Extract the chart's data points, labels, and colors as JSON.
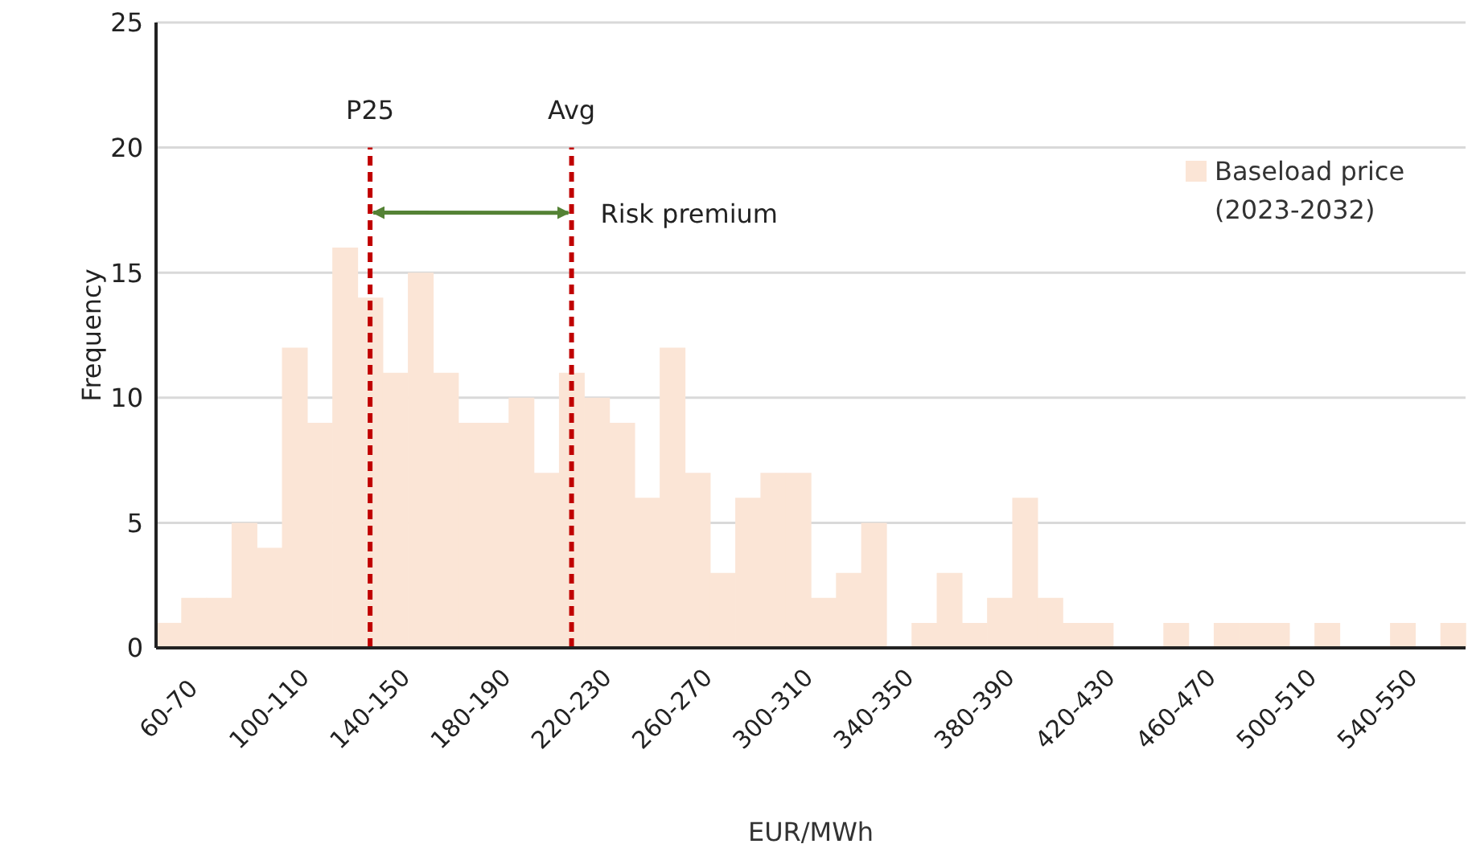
{
  "chart_data": {
    "type": "bar",
    "xlabel": "EUR/MWh",
    "ylabel": "Frequency",
    "categories": [
      "60-70",
      null,
      null,
      null,
      "100-110",
      null,
      null,
      null,
      "140-150",
      null,
      null,
      null,
      "180-190",
      null,
      null,
      null,
      "220-230",
      null,
      null,
      null,
      "260-270",
      null,
      null,
      null,
      "300-310",
      null,
      null,
      null,
      "340-350",
      null,
      null,
      null,
      "380-390",
      null,
      null,
      null,
      "420-430",
      null,
      null,
      null,
      "460-470",
      null,
      null,
      null,
      "500-510",
      null,
      null,
      null,
      "540-550",
      null,
      null,
      null
    ],
    "series": [
      {
        "name": "Baseload price (2023-2032)",
        "color": "#fbe5d6",
        "values": [
          1,
          2,
          2,
          5,
          4,
          12,
          9,
          16,
          14,
          11,
          15,
          11,
          9,
          9,
          10,
          7,
          11,
          10,
          9,
          6,
          12,
          7,
          3,
          6,
          7,
          7,
          2,
          3,
          5,
          0,
          1,
          3,
          1,
          2,
          6,
          2,
          1,
          1,
          0,
          0,
          1,
          0,
          1,
          1,
          1,
          0,
          1,
          0,
          0,
          1,
          0,
          1
        ]
      }
    ],
    "ylim": [
      0,
      25
    ],
    "yticks": [
      0,
      5,
      10,
      15,
      20,
      25
    ],
    "grid": "y",
    "legend": "top right",
    "ref_lines": [
      {
        "axis": "x",
        "value": "140-150",
        "label": "P25",
        "color": "#c00000",
        "line_style": "dashed"
      },
      {
        "axis": "x",
        "value": "220-230",
        "label": "Avg",
        "color": "#c00000",
        "line_style": "dashed"
      }
    ],
    "annotations": [
      "Risk premium"
    ]
  }
}
